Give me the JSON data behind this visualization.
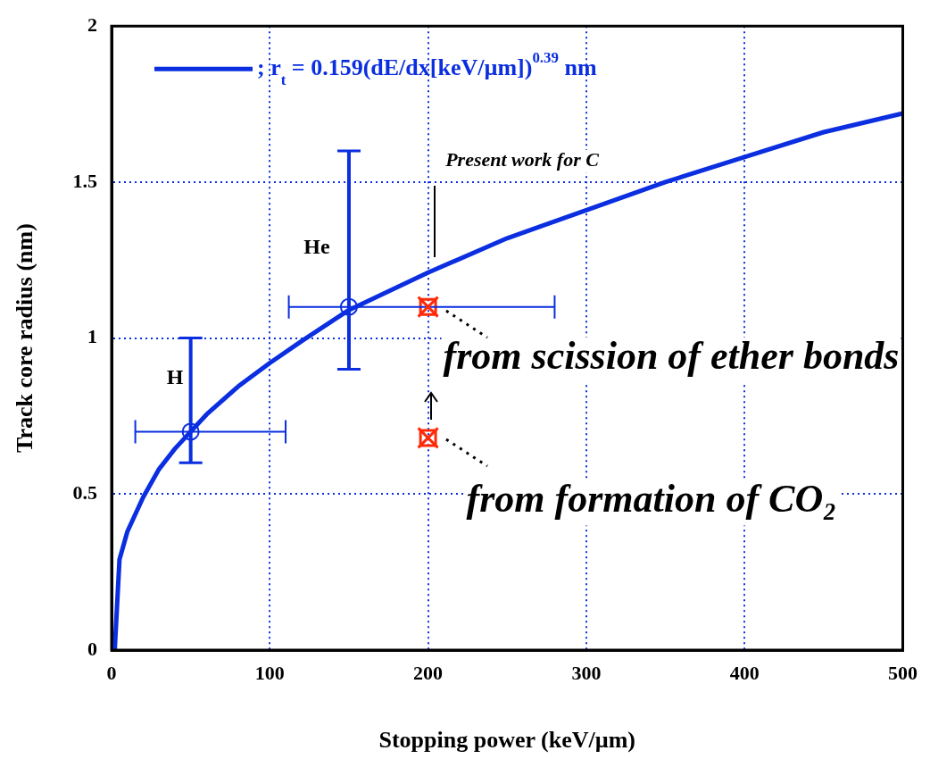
{
  "chart_data": {
    "type": "line",
    "xlabel": "Stopping power (keV/µm)",
    "ylabel": "Track core radius (nm)",
    "xlim": [
      0,
      500
    ],
    "xticks": [
      0,
      100,
      200,
      300,
      400,
      500
    ],
    "ylim": [
      0,
      2
    ],
    "yticks": [
      0,
      0.5,
      1,
      1.5,
      2
    ],
    "grid": true,
    "legend": "top left",
    "series": [
      {
        "name": "; r$_{t}$ = 0.159(dE/dx[keV/µm])$^{0.39}$ nm",
        "color": "#0a2ee0",
        "marker": "none",
        "x": [
          2,
          5,
          10,
          20,
          30,
          40,
          50,
          60,
          80,
          100,
          120,
          150,
          175,
          200,
          250,
          300,
          350,
          400,
          450,
          500
        ],
        "values": [
          0,
          0.29,
          0.38,
          0.49,
          0.58,
          0.645,
          0.7,
          0.755,
          0.845,
          0.92,
          0.99,
          1.09,
          1.15,
          1.21,
          1.32,
          1.41,
          1.5,
          1.58,
          1.66,
          1.72
        ]
      },
      {
        "type": "scatter",
        "color": "#0a2ee0",
        "marker": "circle",
        "x": [
          50
        ],
        "values": [
          0.7
        ],
        "errors": [
          [
            0.6,
            1.0
          ]
        ],
        "xerrors": [
          [
            15,
            110
          ]
        ]
      },
      {
        "type": "scatter",
        "color": "#0a2ee0",
        "marker": "circle",
        "x": [
          150
        ],
        "values": [
          1.1
        ],
        "errors": [
          [
            0.9,
            1.6
          ]
        ],
        "xerrors": [
          [
            112,
            280
          ]
        ]
      },
      {
        "type": "scatter",
        "color": "#ff2a0a",
        "marker": "cross",
        "x": [
          200,
          200
        ],
        "values": [
          1.1,
          0.68
        ]
      }
    ],
    "annotations": [
      "H",
      "He",
      "Present work for C",
      "from scission of ether bonds",
      "from formation of CO₂"
    ]
  }
}
